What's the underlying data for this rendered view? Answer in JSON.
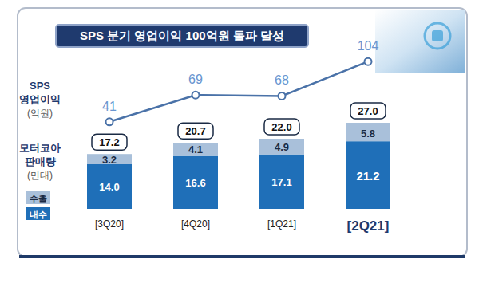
{
  "chart_data": {
    "type": "bar",
    "title": "SPS 분기 영업이익 100억원 돌파 달성",
    "categories": [
      "[3Q20]",
      "[4Q20]",
      "[1Q21]",
      "[2Q21]"
    ],
    "stacked": true,
    "data_labels": true,
    "tick_labels": false,
    "grid": false,
    "y_label": "모터코아 판매량",
    "y_unit": "(만대)",
    "ylim": [
      0,
      48
    ],
    "y2lim": [
      -50,
      110
    ],
    "series": [
      {
        "name": "내수",
        "type": "bar",
        "color": "#1f6fb8",
        "values": [
          14.0,
          16.6,
          17.1,
          21.2
        ],
        "value_labels": [
          "14.0",
          "16.6",
          "17.1",
          "21.2"
        ]
      },
      {
        "name": "수출",
        "type": "bar",
        "color": "#a9c0da",
        "values": [
          3.2,
          4.1,
          4.9,
          5.8
        ],
        "value_labels": [
          "3.2",
          "4.1",
          "4.9",
          "5.8"
        ]
      },
      {
        "name": "SPS 영업이익",
        "type": "line",
        "axis": "y2",
        "color": "#4a72a8",
        "marker": "circle",
        "unit": "(억원)",
        "values": [
          41,
          69,
          68,
          104
        ]
      }
    ],
    "totals": {
      "values": [
        17.2,
        20.7,
        22.0,
        27.0
      ],
      "value_labels": [
        "17.2",
        "20.7",
        "22.0",
        "27.0"
      ]
    }
  }
}
